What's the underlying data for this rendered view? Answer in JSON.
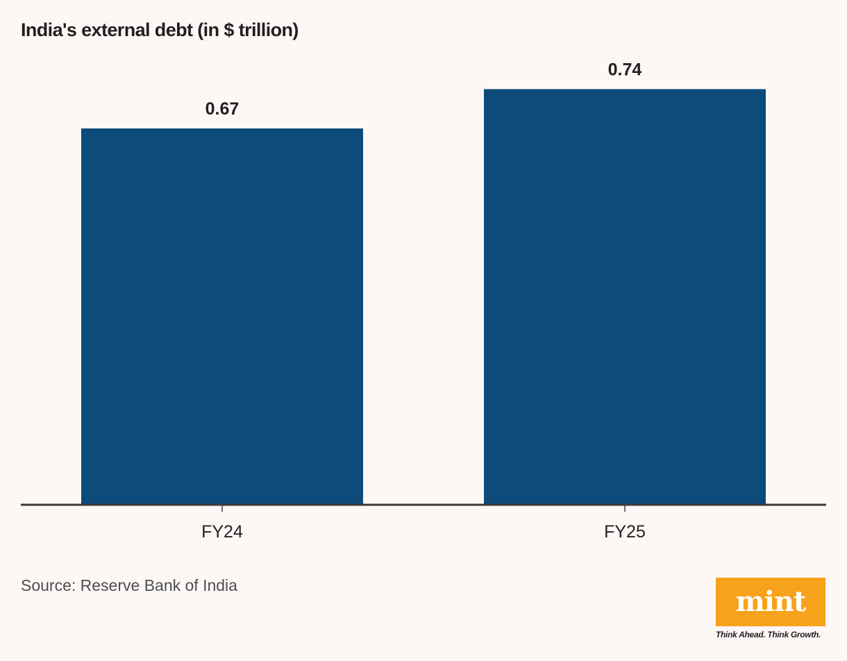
{
  "chart_data": {
    "type": "bar",
    "title": "India's external debt (in $ trillion)",
    "categories": [
      "FY24",
      "FY25"
    ],
    "values": [
      0.67,
      0.74
    ],
    "value_labels": [
      "0.67",
      "0.74"
    ],
    "ylim": [
      0,
      0.8
    ],
    "bar_color": "#0d4b7b",
    "axis_color": "#3a3a3a",
    "grid": false,
    "legend": "none"
  },
  "footer": {
    "source": "Source: Reserve Bank of India",
    "logo_text": "mint",
    "logo_tagline": "Think Ahead. Think Growth.",
    "logo_color": "#f7a21b"
  }
}
